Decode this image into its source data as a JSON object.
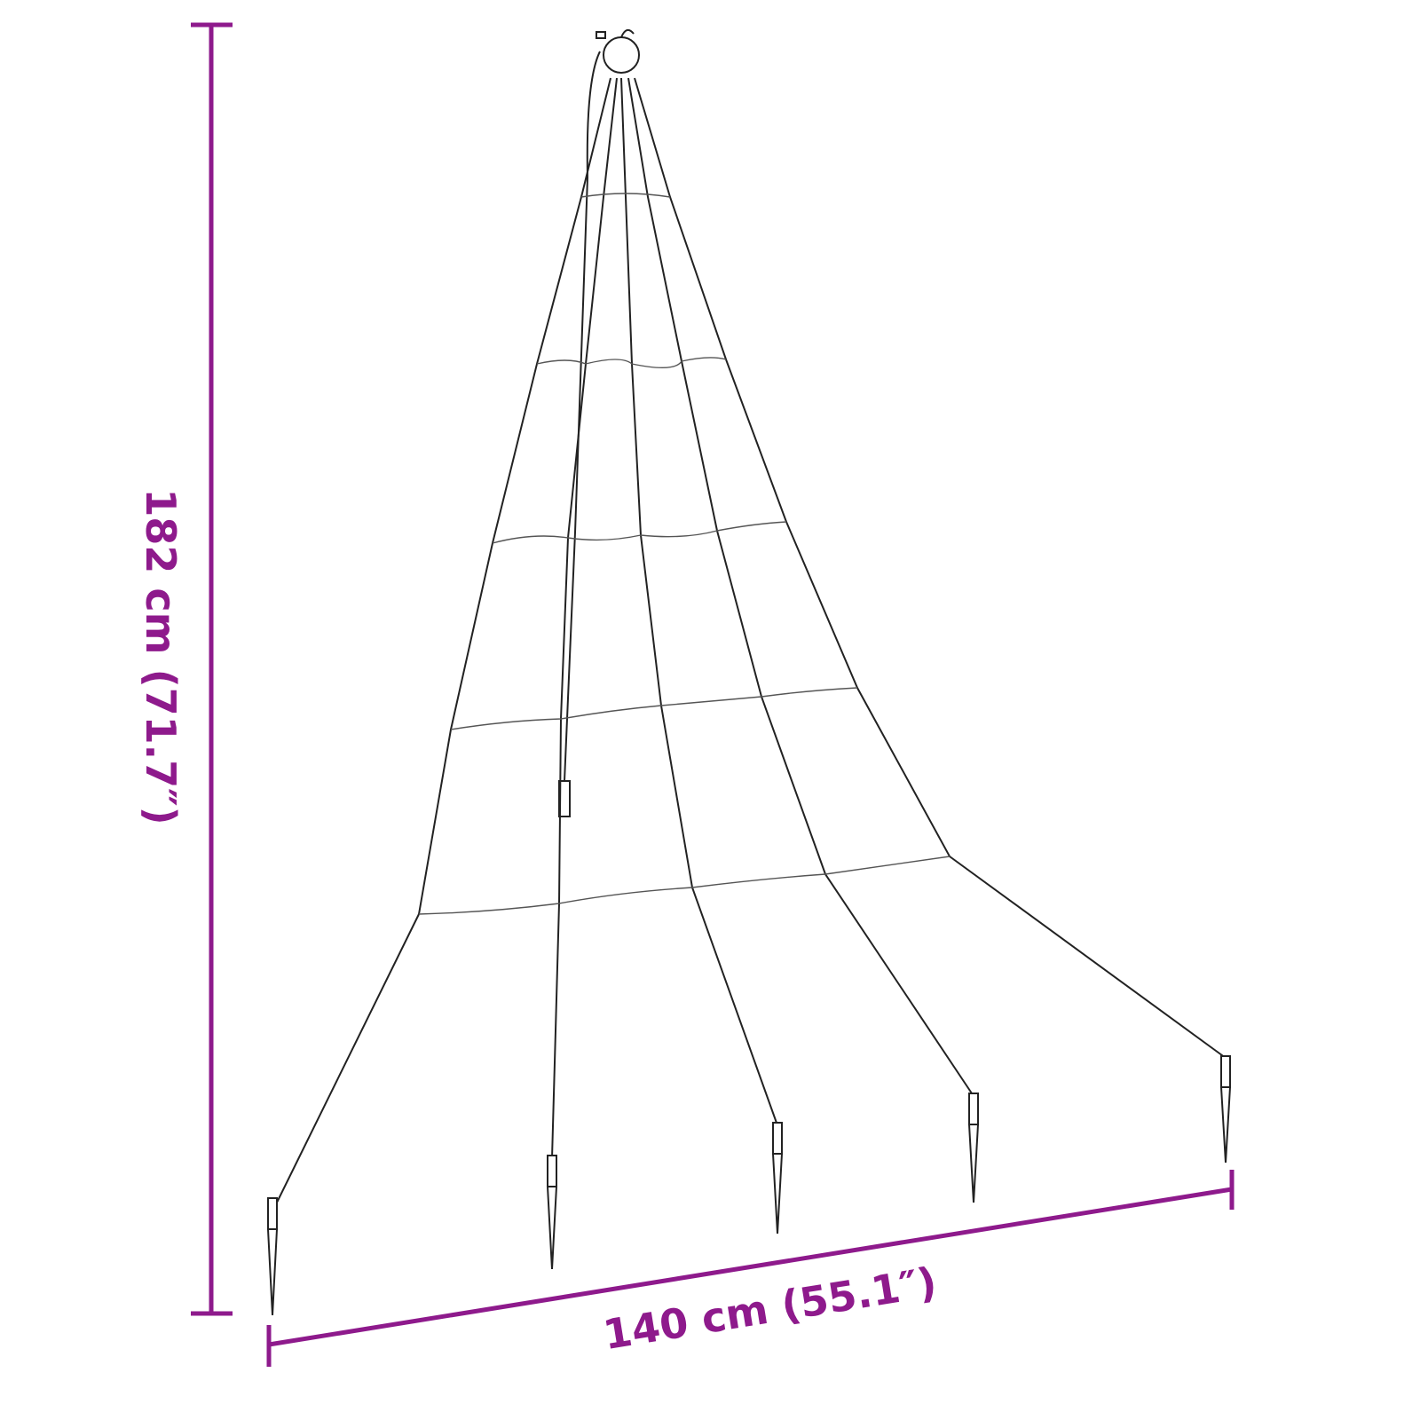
{
  "height_dimension": {
    "label": "182 cm (71.7″)"
  },
  "width_dimension": {
    "label": "140 cm (55.1″)"
  },
  "colors": {
    "dimension": "#8e1a8c",
    "wire": "#222222"
  },
  "product": {
    "strand_count": 5,
    "rung_count": 5,
    "stake_count": 5
  }
}
